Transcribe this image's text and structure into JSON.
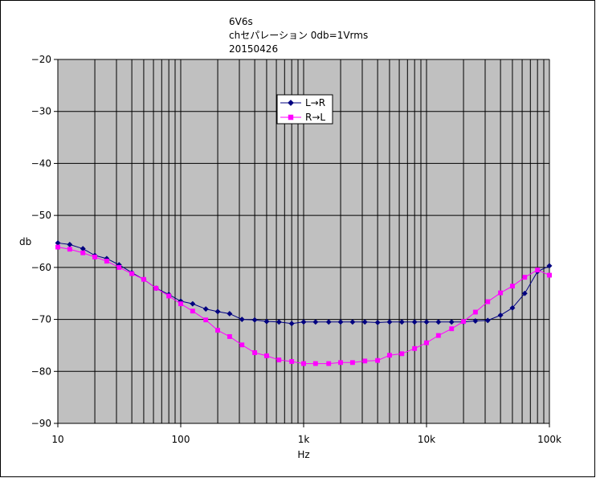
{
  "chart_data": {
    "type": "line",
    "title_lines": [
      "6V6s",
      "chセパレーション 0db=1Vrms",
      "20150426"
    ],
    "xlabel": "Hz",
    "ylabel": "db",
    "x_scale": "log",
    "xlim": [
      10,
      100000
    ],
    "ylim": [
      -90,
      -20
    ],
    "x_ticks": [
      {
        "value": 10,
        "label": "10"
      },
      {
        "value": 100,
        "label": "100"
      },
      {
        "value": 1000,
        "label": "1k"
      },
      {
        "value": 10000,
        "label": "10k"
      },
      {
        "value": 100000,
        "label": "100k"
      }
    ],
    "y_ticks": [
      {
        "value": -20,
        "label": "−20"
      },
      {
        "value": -30,
        "label": "−30"
      },
      {
        "value": -40,
        "label": "−40"
      },
      {
        "value": -50,
        "label": "−50"
      },
      {
        "value": -60,
        "label": "−60"
      },
      {
        "value": -70,
        "label": "−70"
      },
      {
        "value": -80,
        "label": "−80"
      },
      {
        "value": -90,
        "label": "−90"
      }
    ],
    "grid": true,
    "plot_background": "#c0c0c0",
    "legend_position": "top-center",
    "x": [
      10,
      12.5,
      16,
      20,
      25,
      31.5,
      40,
      50,
      63,
      80,
      100,
      125,
      160,
      200,
      250,
      315,
      400,
      500,
      630,
      800,
      1000,
      1250,
      1600,
      2000,
      2500,
      3150,
      4000,
      5000,
      6300,
      8000,
      10000,
      12500,
      16000,
      20000,
      25000,
      31500,
      40000,
      50000,
      63000,
      80000,
      100000
    ],
    "series": [
      {
        "name": "L→R",
        "color": "#000080",
        "marker": "diamond",
        "values": [
          -55.3,
          -55.6,
          -56.4,
          -57.7,
          -58.3,
          -59.5,
          -61.0,
          -62.3,
          -64.0,
          -65.2,
          -66.5,
          -67.0,
          -68.0,
          -68.5,
          -68.9,
          -70.0,
          -70.1,
          -70.4,
          -70.5,
          -70.8,
          -70.5,
          -70.5,
          -70.5,
          -70.5,
          -70.5,
          -70.5,
          -70.6,
          -70.5,
          -70.5,
          -70.5,
          -70.5,
          -70.5,
          -70.5,
          -70.5,
          -70.3,
          -70.2,
          -69.2,
          -67.8,
          -65.0,
          -60.8,
          -59.7
        ]
      },
      {
        "name": "R→L",
        "color": "#ff00ff",
        "marker": "square",
        "values": [
          -56.1,
          -56.5,
          -57.2,
          -58.0,
          -58.8,
          -60.0,
          -61.2,
          -62.3,
          -64.0,
          -65.5,
          -67.0,
          -68.4,
          -70.1,
          -72.1,
          -73.3,
          -74.9,
          -76.4,
          -77.0,
          -77.8,
          -78.1,
          -78.5,
          -78.5,
          -78.5,
          -78.3,
          -78.3,
          -78.0,
          -77.9,
          -76.9,
          -76.6,
          -75.6,
          -74.5,
          -73.1,
          -71.8,
          -70.4,
          -68.6,
          -66.6,
          -64.9,
          -63.6,
          -61.9,
          -60.5,
          -61.5
        ]
      }
    ]
  }
}
